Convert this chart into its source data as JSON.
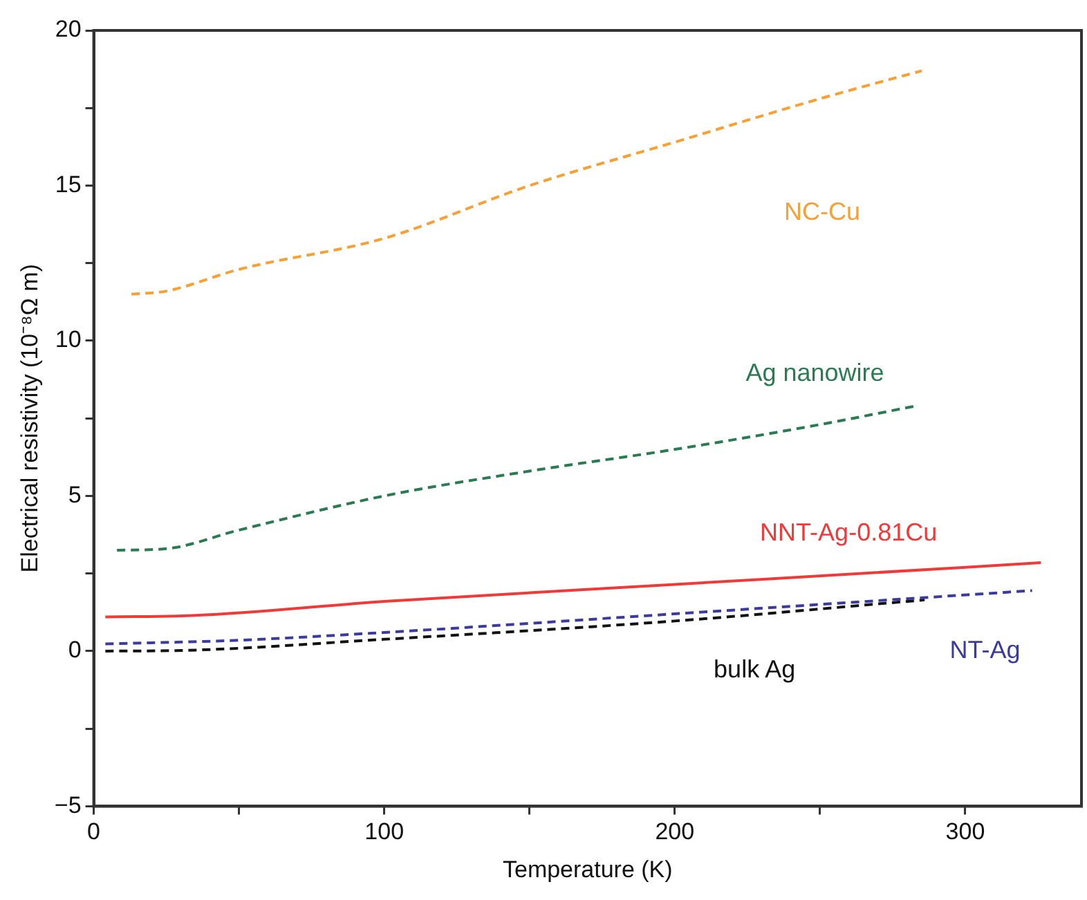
{
  "chart_data": {
    "type": "line",
    "xlabel": "Temperature (K)",
    "ylabel": "Electrical resistivity (10⁻⁸Ω m)",
    "xlim": [
      0,
      340
    ],
    "ylim": [
      -5,
      20
    ],
    "xticks": [
      0,
      {
        "value": 50,
        "label": null
      },
      100,
      {
        "value": 150,
        "label": null
      },
      200,
      {
        "value": 250,
        "label": null
      },
      300
    ],
    "yticks": [
      {
        "value": -5,
        "label": "−5"
      },
      {
        "value": -2.5,
        "label": null
      },
      0,
      {
        "value": 2.5,
        "label": null
      },
      5,
      {
        "value": 7.5,
        "label": null
      },
      10,
      {
        "value": 12.5,
        "label": null
      },
      15,
      {
        "value": 17.5,
        "label": null
      },
      20
    ],
    "grid": false,
    "legend": false,
    "marker": "none",
    "series": [
      {
        "name": "NC-Cu",
        "color": "#f7a035",
        "line_style": "dashed",
        "x": [
          13,
          25,
          50,
          100,
          150,
          200,
          250,
          285
        ],
        "values": [
          11.5,
          11.6,
          12.3,
          13.3,
          15.0,
          16.4,
          17.8,
          18.7
        ]
      },
      {
        "name": "Ag nanowire",
        "color": "#2a7a52",
        "line_style": "dashed",
        "x": [
          8,
          25,
          50,
          100,
          150,
          200,
          250,
          283
        ],
        "values": [
          3.25,
          3.3,
          3.9,
          5.0,
          5.8,
          6.5,
          7.3,
          7.9
        ]
      },
      {
        "name": "NNT-Ag-0.81Cu",
        "color": "#f03a3a",
        "line_style": "solid",
        "x": [
          4,
          35,
          100,
          200,
          300,
          326
        ],
        "values": [
          1.1,
          1.15,
          1.6,
          2.15,
          2.7,
          2.85
        ]
      },
      {
        "name": "NT-Ag",
        "color": "#3b3b9f",
        "line_style": "dashed",
        "x": [
          4,
          50,
          100,
          200,
          323
        ],
        "values": [
          0.23,
          0.35,
          0.6,
          1.2,
          1.95
        ]
      },
      {
        "name": "bulk Ag",
        "color": "#111111",
        "line_style": "dashed",
        "x": [
          4,
          30,
          100,
          200,
          286
        ],
        "values": [
          0,
          0.02,
          0.38,
          0.97,
          1.65
        ]
      }
    ]
  }
}
